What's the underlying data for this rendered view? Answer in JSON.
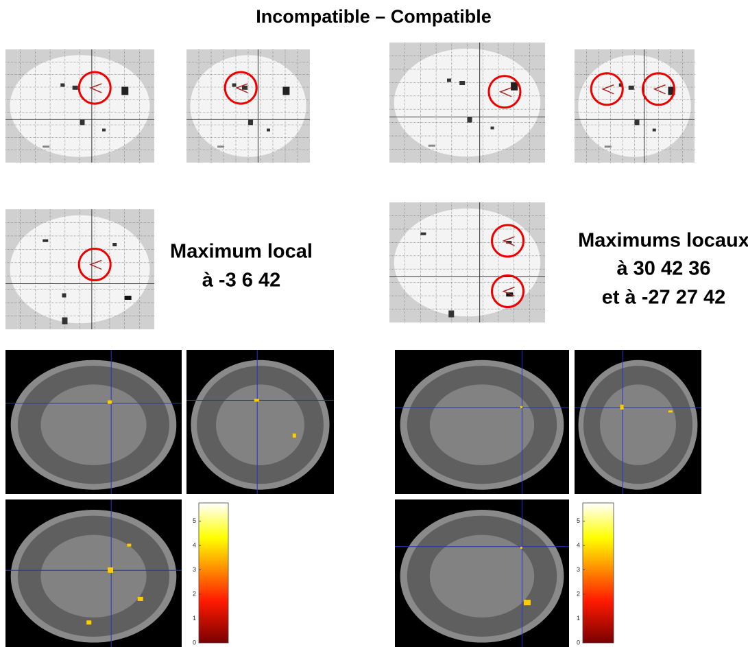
{
  "title": "Incompatible – Compatible",
  "left": {
    "caption": [
      "Maximum local",
      "à -3 6 42"
    ]
  },
  "right": {
    "caption": [
      "Maximums locaux",
      "à 30 42 36",
      "et à -27 27 42"
    ]
  },
  "colorbar": {
    "lim": [
      0,
      5.75
    ],
    "ticks": [
      0,
      1,
      2,
      3,
      4,
      5
    ]
  }
}
